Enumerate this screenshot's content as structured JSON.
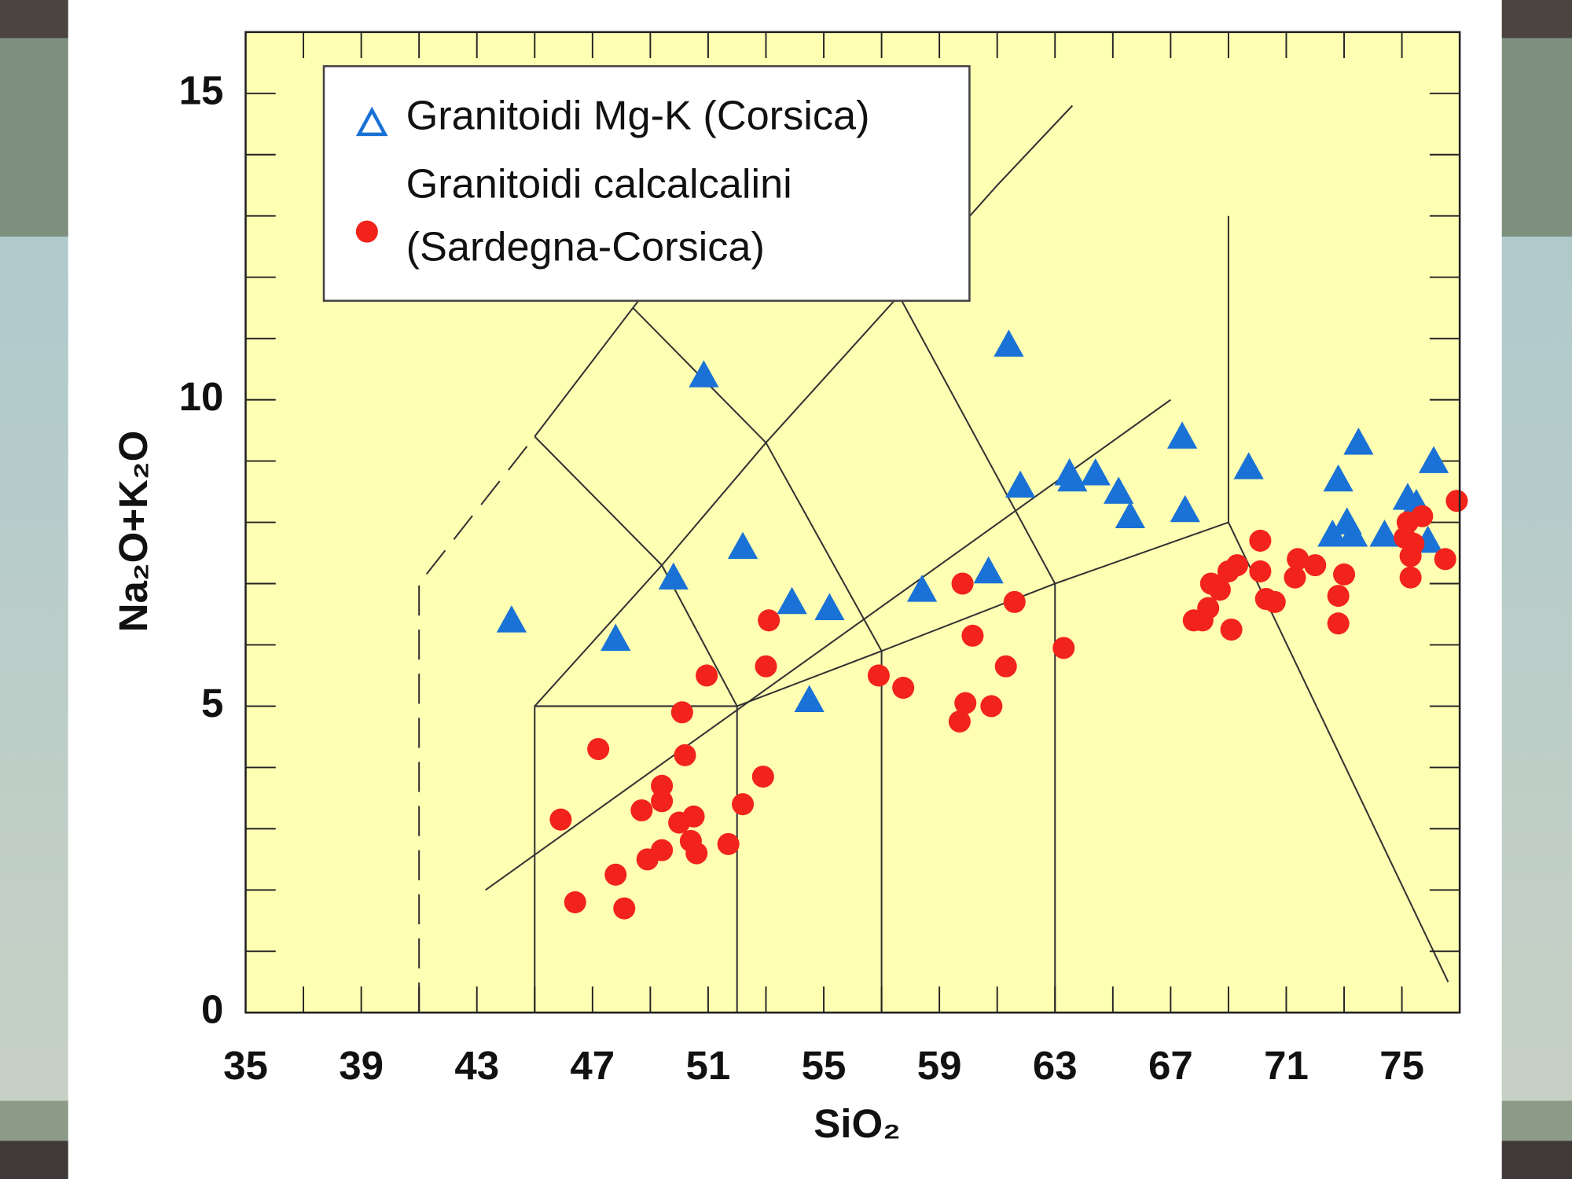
{
  "chart_data": {
    "type": "scatter",
    "xlabel": "SiO₂",
    "ylabel": "Na₂O+K₂O",
    "xlim": [
      35,
      77
    ],
    "ylim": [
      0,
      16
    ],
    "xticks": [
      35,
      39,
      43,
      47,
      51,
      55,
      59,
      63,
      67,
      71,
      75
    ],
    "yticks": [
      0,
      5,
      10,
      15
    ],
    "minor_xticks": [
      37,
      41,
      45,
      49,
      53,
      57,
      61,
      65,
      69,
      73,
      77
    ],
    "minor_yticks": [
      1,
      2,
      3,
      4,
      6,
      7,
      8,
      9,
      11,
      12,
      13,
      14,
      16
    ],
    "legend": "upper left",
    "background": "#ffffb4",
    "series": [
      {
        "name": "Granitoidi Mg-K (Corsica)",
        "color": "#1a72d6",
        "marker": "triangle",
        "x": [
          44.2,
          47.8,
          49.8,
          50.85,
          52.2,
          53.9,
          55.2,
          54.5,
          58.4,
          60.7,
          61.4,
          61.8,
          63.5,
          63.6,
          64.4,
          65.2,
          65.6,
          67.4,
          67.5,
          69.7,
          72.8,
          73.5,
          72.6,
          73.1,
          73.3,
          74.4,
          75.2,
          75.5,
          76.1,
          75.9
        ],
        "y": [
          6.4,
          6.1,
          7.1,
          10.4,
          7.6,
          6.7,
          6.6,
          5.1,
          6.9,
          7.2,
          10.9,
          8.6,
          8.8,
          8.7,
          8.8,
          8.5,
          8.1,
          9.4,
          8.2,
          8.9,
          8.7,
          9.3,
          7.8,
          8.0,
          7.8,
          7.8,
          8.4,
          8.3,
          9.0,
          7.7
        ]
      },
      {
        "name": "Granitoidi calcalcalini (Sardegna-Corsica)",
        "color": "#f2231a",
        "marker": "circle",
        "x": [
          45.9,
          46.4,
          47.2,
          47.8,
          48.1,
          48.7,
          48.9,
          49.4,
          49.4,
          49.4,
          50.0,
          50.1,
          50.2,
          50.4,
          50.5,
          50.6,
          50.95,
          51.7,
          52.2,
          52.9,
          53.0,
          53.1,
          56.9,
          57.75,
          59.7,
          59.9,
          59.8,
          60.15,
          60.8,
          61.3,
          61.6,
          63.3,
          67.8,
          68.1,
          68.3,
          68.4,
          68.7,
          69.0,
          69.1,
          69.3,
          70.1,
          70.1,
          70.3,
          70.6,
          71.3,
          71.4,
          72.0,
          72.8,
          72.8,
          73.0,
          75.1,
          75.3,
          75.3,
          75.2,
          75.4,
          75.7,
          76.5,
          76.9
        ],
        "y": [
          3.15,
          1.8,
          4.3,
          2.25,
          1.7,
          3.3,
          2.5,
          2.65,
          3.7,
          3.45,
          3.1,
          4.9,
          4.2,
          2.8,
          3.2,
          2.6,
          5.5,
          2.75,
          3.4,
          3.85,
          5.65,
          6.4,
          5.5,
          5.3,
          4.75,
          5.05,
          7.0,
          6.15,
          5.0,
          5.65,
          6.7,
          5.95,
          6.4,
          6.4,
          6.6,
          7.0,
          6.9,
          7.2,
          6.25,
          7.3,
          7.7,
          7.2,
          6.75,
          6.7,
          7.1,
          7.4,
          7.3,
          6.35,
          6.8,
          7.15,
          7.75,
          7.45,
          7.1,
          8.0,
          7.65,
          8.1,
          7.4,
          8.35
        ]
      }
    ],
    "field_lines": [
      {
        "style": "dashed",
        "x": [
          41,
          41,
          45
        ],
        "y": [
          0,
          7,
          9.4
        ]
      },
      {
        "style": "solid",
        "x": [
          45,
          45,
          52,
          52
        ],
        "y": [
          0,
          5,
          5,
          0
        ]
      },
      {
        "style": "solid",
        "x": [
          52,
          57,
          57
        ],
        "y": [
          5,
          5.9,
          0
        ]
      },
      {
        "style": "solid",
        "x": [
          57,
          63,
          63
        ],
        "y": [
          5.9,
          7,
          0
        ]
      },
      {
        "style": "solid",
        "x": [
          63,
          69,
          69
        ],
        "y": [
          7,
          8,
          13
        ]
      },
      {
        "style": "solid",
        "x": [
          69,
          76.6
        ],
        "y": [
          8,
          0.5
        ]
      },
      {
        "style": "solid",
        "x": [
          45,
          49.4,
          53,
          57.6,
          61,
          63.6
        ],
        "y": [
          5,
          7.3,
          9.3,
          11.7,
          13.5,
          14.8
        ]
      },
      {
        "style": "solid",
        "x": [
          45,
          48.4,
          52.5
        ],
        "y": [
          9.4,
          11.5,
          14
        ]
      },
      {
        "style": "solid",
        "x": [
          52,
          49.4,
          45
        ],
        "y": [
          5,
          7.3,
          9.4
        ]
      },
      {
        "style": "solid",
        "x": [
          57,
          53,
          48.4
        ],
        "y": [
          5.9,
          9.3,
          11.5
        ]
      },
      {
        "style": "solid",
        "x": [
          63,
          57.6,
          53
        ],
        "y": [
          7,
          11.7,
          14.2
        ]
      },
      {
        "style": "solid",
        "x": [
          43.3,
          67
        ],
        "y": [
          2,
          10
        ]
      }
    ]
  }
}
